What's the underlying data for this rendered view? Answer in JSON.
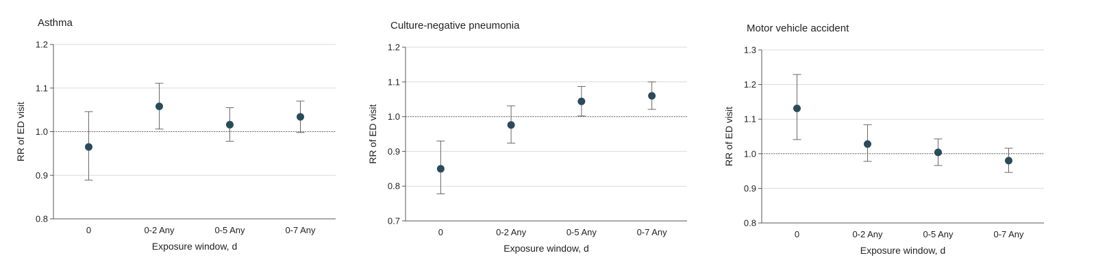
{
  "colors": {
    "point": "#2a4b5a",
    "errorbar": "#666666",
    "grid": "#d9d9d9",
    "axis": "#555555",
    "reference_line": "#555555"
  },
  "chart_data": [
    {
      "type": "scatter",
      "title": "Asthma",
      "xlabel": "Exposure window, d",
      "ylabel": "RR of ED visit",
      "categories": [
        "0",
        "0-2 Any",
        "0-5 Any",
        "0-7 Any"
      ],
      "ylim": [
        0.8,
        1.2
      ],
      "yticks": [
        "0.8",
        "0.9",
        "1.0",
        "1.1",
        "1.2"
      ],
      "grid": true,
      "reference_line": 1.0,
      "series": [
        {
          "values": [
            0.965,
            1.058,
            1.016,
            1.034
          ],
          "lower": [
            0.889,
            1.006,
            0.978,
            0.998
          ],
          "upper": [
            1.046,
            1.111,
            1.055,
            1.07
          ]
        }
      ]
    },
    {
      "type": "scatter",
      "title": "Culture-negative pneumonia",
      "xlabel": "Exposure window, d",
      "ylabel": "RR of ED visit",
      "categories": [
        "0",
        "0-2 Any",
        "0-5 Any",
        "0-7 Any"
      ],
      "ylim": [
        0.7,
        1.2
      ],
      "yticks": [
        "0.7",
        "0.8",
        "0.9",
        "1.0",
        "1.1",
        "1.2"
      ],
      "grid": true,
      "reference_line": 1.0,
      "series": [
        {
          "values": [
            0.85,
            0.976,
            1.044,
            1.06
          ],
          "lower": [
            0.778,
            0.924,
            1.002,
            1.021
          ],
          "upper": [
            0.93,
            1.031,
            1.087,
            1.1
          ]
        }
      ]
    },
    {
      "type": "scatter",
      "title": "Motor vehicle accident",
      "xlabel": "Exposure window, d",
      "ylabel": "RR of ED visit",
      "categories": [
        "0",
        "0-2 Any",
        "0-5 Any",
        "0-7 Any"
      ],
      "ylim": [
        0.8,
        1.3
      ],
      "yticks": [
        "0.8",
        "0.9",
        "1.0",
        "1.1",
        "1.2",
        "1.3"
      ],
      "grid": true,
      "reference_line": 1.0,
      "series": [
        {
          "values": [
            1.131,
            1.028,
            1.004,
            0.98
          ],
          "lower": [
            1.041,
            0.978,
            0.966,
            0.946
          ],
          "upper": [
            1.229,
            1.084,
            1.043,
            1.016
          ]
        }
      ]
    }
  ]
}
